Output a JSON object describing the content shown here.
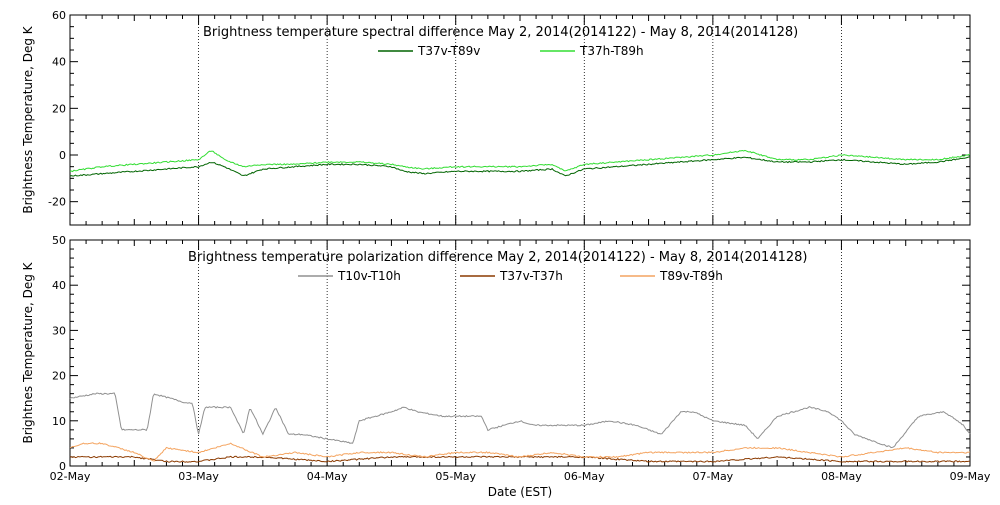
{
  "chart_data": [
    {
      "type": "line",
      "title": "Brightness temperature spectral difference    May  2, 2014(2014122) - May  8, 2014(2014128)",
      "ylabel": "Brightness Temperature, Deg K",
      "xlabel": "",
      "x_ticks": [
        "02-May",
        "03-May",
        "04-May",
        "05-May",
        "06-May",
        "07-May",
        "08-May",
        "09-May"
      ],
      "xlim": [
        0,
        7
      ],
      "ylim": [
        -30,
        60
      ],
      "y_ticks": [
        -20,
        0,
        20,
        40,
        60
      ],
      "grid": true,
      "legend": "top-center",
      "series": [
        {
          "name": "T37v-T89v",
          "color": "#006400",
          "x": [
            0,
            0.25,
            0.5,
            0.75,
            1.0,
            1.1,
            1.2,
            1.35,
            1.5,
            1.75,
            2.0,
            2.25,
            2.5,
            2.6,
            2.75,
            3.0,
            3.25,
            3.5,
            3.75,
            3.85,
            4.0,
            4.25,
            4.5,
            4.75,
            5.0,
            5.25,
            5.5,
            5.75,
            6.0,
            6.25,
            6.5,
            6.75,
            7.0
          ],
          "values": [
            -9,
            -8,
            -7,
            -6,
            -5,
            -3,
            -5,
            -9,
            -6,
            -5,
            -4,
            -4,
            -5,
            -7,
            -8,
            -7,
            -7,
            -7,
            -6,
            -9,
            -6,
            -5,
            -4,
            -3,
            -2,
            -1,
            -3,
            -3,
            -2,
            -3,
            -4,
            -3,
            -1
          ]
        },
        {
          "name": "T37h-T89h",
          "color": "#33dd33",
          "x": [
            0,
            0.25,
            0.5,
            0.75,
            1.0,
            1.1,
            1.2,
            1.35,
            1.5,
            1.75,
            2.0,
            2.25,
            2.5,
            2.6,
            2.75,
            3.0,
            3.25,
            3.5,
            3.75,
            3.85,
            4.0,
            4.25,
            4.5,
            4.75,
            5.0,
            5.25,
            5.5,
            5.75,
            6.0,
            6.25,
            6.5,
            6.75,
            7.0
          ],
          "values": [
            -7,
            -5,
            -4,
            -3,
            -2,
            2,
            -2,
            -5,
            -4,
            -4,
            -3,
            -3,
            -4,
            -5,
            -6,
            -5,
            -5,
            -5,
            -4,
            -7,
            -4,
            -3,
            -2,
            -1,
            0,
            2,
            -2,
            -2,
            0,
            -1,
            -2,
            -2,
            0
          ]
        }
      ]
    },
    {
      "type": "line",
      "title": "Brightness temperature polarization difference    May  2, 2014(2014122) - May  8, 2014(2014128)",
      "ylabel": "Brightnes Temperature, Deg K",
      "xlabel": "Date (EST)",
      "x_ticks": [
        "02-May",
        "03-May",
        "04-May",
        "05-May",
        "06-May",
        "07-May",
        "08-May",
        "09-May"
      ],
      "xlim": [
        0,
        7
      ],
      "ylim": [
        0,
        50
      ],
      "y_ticks": [
        0,
        10,
        20,
        30,
        40,
        50
      ],
      "grid": true,
      "legend": "top-center",
      "series": [
        {
          "name": "T10v-T10h",
          "color": "#909090",
          "x": [
            0,
            0.2,
            0.35,
            0.4,
            0.6,
            0.65,
            0.9,
            0.95,
            1.0,
            1.05,
            1.25,
            1.35,
            1.4,
            1.5,
            1.6,
            1.7,
            1.8,
            2.0,
            2.2,
            2.25,
            2.5,
            2.6,
            2.7,
            2.9,
            3.2,
            3.25,
            3.5,
            3.6,
            3.8,
            4.0,
            4.2,
            4.4,
            4.6,
            4.75,
            4.85,
            5.0,
            5.25,
            5.35,
            5.5,
            5.75,
            5.9,
            6.0,
            6.1,
            6.3,
            6.4,
            6.6,
            6.8,
            6.95,
            7.0
          ],
          "values": [
            15,
            16,
            16,
            8,
            8,
            16,
            14,
            14,
            7,
            13,
            13,
            7,
            13,
            7,
            13,
            7,
            7,
            6,
            5,
            10,
            12,
            13,
            12,
            11,
            11,
            8,
            10,
            9,
            9,
            9,
            10,
            9,
            7,
            12,
            12,
            10,
            9,
            6,
            11,
            13,
            12,
            10,
            7,
            5,
            4,
            11,
            12,
            9,
            7
          ]
        },
        {
          "name": "T37v-T37h",
          "color": "#8b3a00",
          "x": [
            0,
            0.5,
            0.75,
            1.0,
            1.25,
            1.5,
            2.0,
            2.5,
            3.0,
            3.5,
            4.0,
            4.5,
            5.0,
            5.5,
            6.0,
            6.5,
            7.0
          ],
          "values": [
            2,
            2,
            1,
            1,
            2,
            2,
            1,
            2,
            2,
            2,
            2,
            1,
            1,
            2,
            1,
            1,
            1
          ]
        },
        {
          "name": "T89v-T89h",
          "color": "#f4a460",
          "x": [
            0,
            0.1,
            0.25,
            0.5,
            0.65,
            0.75,
            1.0,
            1.25,
            1.5,
            1.75,
            2.0,
            2.25,
            2.5,
            2.75,
            3.0,
            3.25,
            3.5,
            3.75,
            4.0,
            4.25,
            4.5,
            4.75,
            5.0,
            5.25,
            5.5,
            5.75,
            6.0,
            6.25,
            6.5,
            6.75,
            7.0
          ],
          "values": [
            4,
            5,
            5,
            3,
            1,
            4,
            3,
            5,
            2,
            3,
            2,
            3,
            3,
            2,
            3,
            3,
            2,
            3,
            2,
            2,
            3,
            3,
            3,
            4,
            4,
            3,
            2,
            3,
            4,
            3,
            3
          ]
        }
      ]
    }
  ]
}
